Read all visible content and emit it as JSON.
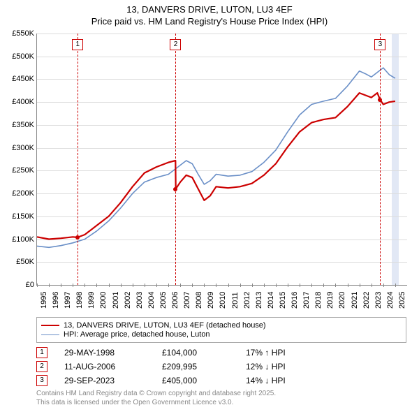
{
  "title_line1": "13, DANVERS DRIVE, LUTON, LU3 4EF",
  "title_line2": "Price paid vs. HM Land Registry's House Price Index (HPI)",
  "chart": {
    "ymin": 0,
    "ymax": 550,
    "ylabels": [
      "£0",
      "£50K",
      "£100K",
      "£150K",
      "£200K",
      "£250K",
      "£300K",
      "£350K",
      "£400K",
      "£450K",
      "£500K",
      "£550K"
    ],
    "yticks_k": [
      0,
      50,
      100,
      150,
      200,
      250,
      300,
      350,
      400,
      450,
      500,
      550
    ],
    "xmin": 1995,
    "xmax": 2026,
    "xlabels": [
      "1995",
      "1996",
      "1997",
      "1998",
      "1999",
      "2000",
      "2001",
      "2002",
      "2003",
      "2004",
      "2005",
      "2006",
      "2007",
      "2008",
      "2009",
      "2010",
      "2011",
      "2012",
      "2013",
      "2014",
      "2015",
      "2016",
      "2017",
      "2018",
      "2019",
      "2020",
      "2021",
      "2022",
      "2023",
      "2024",
      "2025"
    ],
    "grid_color": "#dcdcdc",
    "axis_color": "#888888",
    "background_color": "#ffffff",
    "shade_band": {
      "x_start": 2024.7,
      "x_end": 2025.3,
      "color": "#e2e8f5"
    },
    "series": {
      "price_paid": {
        "color": "#cc0000",
        "width": 2.2,
        "legend": "13, DANVERS DRIVE, LUTON, LU3 4EF (detached house)",
        "points": [
          [
            1995.0,
            105
          ],
          [
            1996.0,
            100
          ],
          [
            1997.0,
            102
          ],
          [
            1998.0,
            105
          ],
          [
            1998.4,
            104
          ],
          [
            1999.0,
            110
          ],
          [
            2000.0,
            130
          ],
          [
            2001.0,
            150
          ],
          [
            2002.0,
            180
          ],
          [
            2003.0,
            215
          ],
          [
            2004.0,
            245
          ],
          [
            2005.0,
            258
          ],
          [
            2006.0,
            268
          ],
          [
            2006.6,
            272
          ],
          [
            2006.62,
            210
          ],
          [
            2007.0,
            225
          ],
          [
            2007.5,
            240
          ],
          [
            2008.0,
            235
          ],
          [
            2008.5,
            210
          ],
          [
            2009.0,
            185
          ],
          [
            2009.5,
            195
          ],
          [
            2010.0,
            215
          ],
          [
            2011.0,
            212
          ],
          [
            2012.0,
            215
          ],
          [
            2013.0,
            222
          ],
          [
            2014.0,
            240
          ],
          [
            2015.0,
            265
          ],
          [
            2016.0,
            302
          ],
          [
            2017.0,
            335
          ],
          [
            2018.0,
            355
          ],
          [
            2019.0,
            362
          ],
          [
            2020.0,
            366
          ],
          [
            2021.0,
            390
          ],
          [
            2022.0,
            420
          ],
          [
            2022.5,
            415
          ],
          [
            2023.0,
            410
          ],
          [
            2023.5,
            420
          ],
          [
            2023.74,
            405
          ],
          [
            2024.0,
            395
          ],
          [
            2024.5,
            400
          ],
          [
            2025.0,
            402
          ]
        ]
      },
      "hpi": {
        "color": "#6a8fc7",
        "width": 1.6,
        "legend": "HPI: Average price, detached house, Luton",
        "points": [
          [
            1995.0,
            85
          ],
          [
            1996.0,
            82
          ],
          [
            1997.0,
            86
          ],
          [
            1998.0,
            92
          ],
          [
            1999.0,
            100
          ],
          [
            2000.0,
            118
          ],
          [
            2001.0,
            140
          ],
          [
            2002.0,
            168
          ],
          [
            2003.0,
            200
          ],
          [
            2004.0,
            225
          ],
          [
            2005.0,
            235
          ],
          [
            2006.0,
            242
          ],
          [
            2007.0,
            262
          ],
          [
            2007.5,
            272
          ],
          [
            2008.0,
            265
          ],
          [
            2008.5,
            242
          ],
          [
            2009.0,
            220
          ],
          [
            2009.5,
            228
          ],
          [
            2010.0,
            242
          ],
          [
            2011.0,
            238
          ],
          [
            2012.0,
            240
          ],
          [
            2013.0,
            248
          ],
          [
            2014.0,
            268
          ],
          [
            2015.0,
            295
          ],
          [
            2016.0,
            335
          ],
          [
            2017.0,
            372
          ],
          [
            2018.0,
            395
          ],
          [
            2019.0,
            402
          ],
          [
            2020.0,
            408
          ],
          [
            2021.0,
            435
          ],
          [
            2022.0,
            468
          ],
          [
            2022.5,
            462
          ],
          [
            2023.0,
            455
          ],
          [
            2023.5,
            465
          ],
          [
            2024.0,
            475
          ],
          [
            2024.5,
            460
          ],
          [
            2025.0,
            452
          ]
        ]
      }
    },
    "sale_markers": [
      {
        "n": "1",
        "x": 1998.41,
        "price_k": 104
      },
      {
        "n": "2",
        "x": 2006.61,
        "price_k": 210
      },
      {
        "n": "3",
        "x": 2023.74,
        "price_k": 405
      }
    ],
    "sale_dot_color": "#cc0000",
    "vline_color": "#cc0000"
  },
  "sales_rows": [
    {
      "n": "1",
      "date": "29-MAY-1998",
      "price": "£104,000",
      "hpi": "17% ↑ HPI"
    },
    {
      "n": "2",
      "date": "11-AUG-2006",
      "price": "£209,995",
      "hpi": "12% ↓ HPI"
    },
    {
      "n": "3",
      "date": "29-SEP-2023",
      "price": "£405,000",
      "hpi": "14% ↓ HPI"
    }
  ],
  "footer_line1": "Contains HM Land Registry data © Crown copyright and database right 2025.",
  "footer_line2": "This data is licensed under the Open Government Licence v3.0."
}
